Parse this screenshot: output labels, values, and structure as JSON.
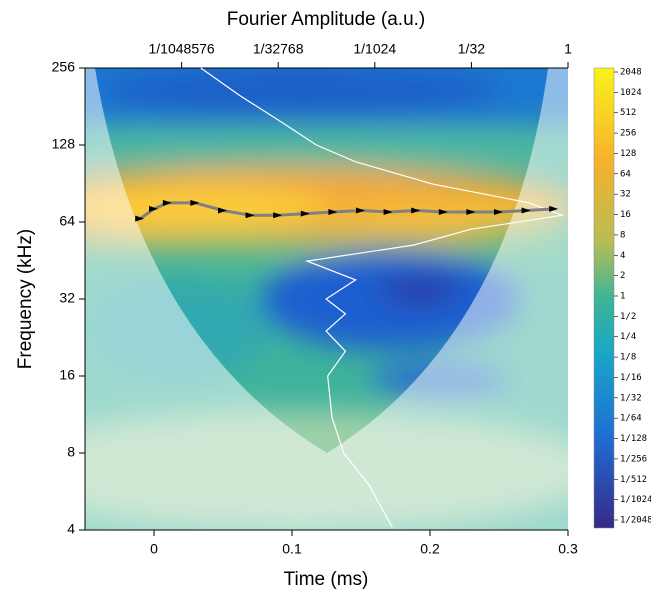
{
  "chart_data": {
    "type": "scalogram",
    "title": "Fourier Amplitude (a.u.)",
    "xlabel": "Time (ms)",
    "ylabel": "Frequency (kHz)",
    "xlim": [
      -0.05,
      0.3
    ],
    "xticks": [
      0,
      0.1,
      0.2,
      0.3
    ],
    "ylim": [
      4,
      256
    ],
    "yticks": [
      4,
      8,
      16,
      32,
      64,
      128,
      256
    ],
    "y_log_base": 2,
    "x2lim": [
      2.9802322387695312e-08,
      1
    ],
    "x2ticks": [
      {
        "value": 9.5367431640625e-07,
        "label": "1/1048576"
      },
      {
        "value": 3.0517578125e-05,
        "label": "1/32768"
      },
      {
        "value": 0.0009765625,
        "label": "1/1024"
      },
      {
        "value": 0.03125,
        "label": "1/32"
      },
      1
    ],
    "clim": [
      0.00048828125,
      2048
    ],
    "cticks": [
      2048,
      1024,
      512,
      256,
      128,
      64,
      32,
      16,
      8,
      4,
      2,
      1,
      {
        "value": 0.5,
        "label": "1/2"
      },
      {
        "value": 0.25,
        "label": "1/4"
      },
      {
        "value": 0.125,
        "label": "1/8"
      },
      {
        "value": 0.0625,
        "label": "1/16"
      },
      {
        "value": 0.03125,
        "label": "1/32"
      },
      {
        "value": 0.015625,
        "label": "1/64"
      },
      {
        "value": 0.0078125,
        "label": "1/128"
      },
      {
        "value": 0.00390625,
        "label": "1/256"
      },
      {
        "value": 0.001953125,
        "label": "1/512"
      },
      {
        "value": 0.0009765625,
        "label": "1/1024"
      },
      {
        "value": 0.00048828125,
        "label": "1/2048"
      }
    ],
    "ridge": {
      "color": "#808080",
      "x": [
        -0.01,
        0,
        0.01,
        0.03,
        0.05,
        0.07,
        0.09,
        0.11,
        0.13,
        0.15,
        0.17,
        0.19,
        0.21,
        0.23,
        0.25,
        0.27,
        0.29
      ],
      "values": [
        66,
        72,
        76,
        76,
        71,
        68,
        68,
        69,
        70,
        71,
        70,
        71,
        70,
        70,
        70,
        71,
        72
      ]
    },
    "fourier_spectrum": {
      "color": "#ffffff",
      "frequency": [
        4.1,
        6,
        8,
        11,
        16,
        20,
        24,
        28,
        32,
        38,
        45,
        52,
        60,
        68,
        76,
        90,
        110,
        128,
        160,
        200,
        256
      ],
      "values": [
        0.00183,
        0.00079,
        0.00032,
        0.00021,
        0.00018,
        0.00034,
        0.00017,
        0.00034,
        0.00017,
        0.00049,
        8.6e-05,
        0.0039,
        0.031,
        0.81,
        0.25,
        0.0078,
        0.00049,
        0.00012,
        3.1e-05,
        7.6e-06,
        1.9e-06
      ]
    }
  }
}
